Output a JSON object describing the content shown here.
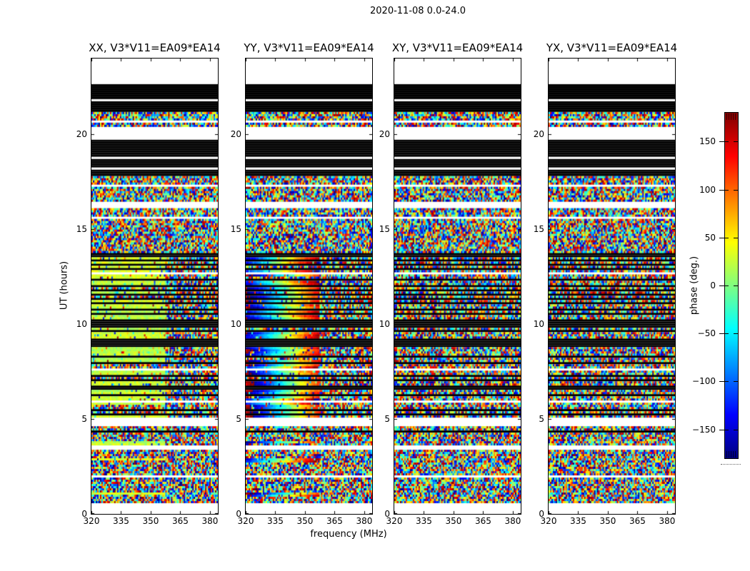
{
  "figure": {
    "suptitle": "2020-11-08 0.0-24.0"
  },
  "chart_data": {
    "type": "heatmap",
    "description": "Dynamic spectra of interferometric visibility phase for baseline V3*V11=EA09*EA14 on 2020-11-08, UT 0-24 h. Four polarization panels (XX, YY, XY, YX) share a frequency axis 320-384 MHz and a UT axis 0-24 h. Color encodes phase in degrees with a jet colormap (-180 to +180). Data are flagged in horizontal bands (white = no data, black = flagged/zero). XX shows coherent phase near +25 deg (light green) below ~357 MHz; YY shows a phase ramp across frequency from about -168 deg (dark blue) to +160 deg (red); XY and YX are incoherent noise; above ~357 MHz all panels are noise-like.",
    "panels": [
      {
        "id": "XX",
        "title": "XX, V3*V11=EA09*EA14",
        "signal_model": "constant"
      },
      {
        "id": "YY",
        "title": "YY, V3*V11=EA09*EA14",
        "signal_model": "gradient"
      },
      {
        "id": "XY",
        "title": "XY, V3*V11=EA09*EA14",
        "signal_model": "noise"
      },
      {
        "id": "YX",
        "title": "YX, V3*V11=EA09*EA14",
        "signal_model": "noise"
      }
    ],
    "x_axis": {
      "label": "frequency (MHz)",
      "range": [
        320,
        384
      ],
      "ticks": [
        320,
        335,
        350,
        365,
        380
      ]
    },
    "y_axis": {
      "label": "UT (hours)",
      "range": [
        0,
        24
      ],
      "ticks": [
        0,
        5,
        10,
        15,
        20
      ]
    },
    "colorbar": {
      "label": "phase (deg.)",
      "colormap": "jet",
      "range": [
        -180,
        180
      ],
      "ticks": [
        150,
        100,
        50,
        0,
        -50,
        -100,
        -150
      ]
    },
    "bands_ut": [
      [
        24.0,
        22.68,
        "white"
      ],
      [
        22.68,
        21.86,
        "black"
      ],
      [
        21.86,
        21.74,
        "white"
      ],
      [
        21.74,
        21.21,
        "black"
      ],
      [
        21.21,
        20.72,
        "noise"
      ],
      [
        20.72,
        20.57,
        "white"
      ],
      [
        20.57,
        20.42,
        "noise"
      ],
      [
        20.42,
        19.67,
        "white"
      ],
      [
        19.67,
        18.81,
        "black"
      ],
      [
        18.81,
        18.73,
        "white"
      ],
      [
        18.73,
        18.28,
        "black"
      ],
      [
        18.28,
        18.17,
        "white"
      ],
      [
        18.17,
        17.83,
        "black"
      ],
      [
        17.83,
        17.76,
        "white"
      ],
      [
        17.76,
        17.37,
        "noise"
      ],
      [
        17.37,
        17.27,
        "white"
      ],
      [
        17.27,
        16.42,
        "noise"
      ],
      [
        16.42,
        16.15,
        "white"
      ],
      [
        16.15,
        15.66,
        "noise"
      ],
      [
        15.66,
        15.56,
        "white"
      ],
      [
        15.56,
        14.25,
        "noise"
      ],
      [
        14.25,
        14.18,
        "white"
      ],
      [
        14.18,
        13.72,
        "noise"
      ],
      [
        13.72,
        13.5,
        "black"
      ],
      [
        13.5,
        12.72,
        "signal"
      ],
      [
        12.72,
        12.65,
        "white"
      ],
      [
        12.65,
        10.38,
        "signal"
      ],
      [
        10.38,
        10.31,
        "white"
      ],
      [
        10.31,
        10.2,
        "signal"
      ],
      [
        10.2,
        9.95,
        "black"
      ],
      [
        9.95,
        9.28,
        "signal"
      ],
      [
        9.28,
        8.95,
        "black"
      ],
      [
        8.95,
        8.6,
        "signal"
      ],
      [
        8.6,
        8.53,
        "white"
      ],
      [
        8.53,
        7.65,
        "signal"
      ],
      [
        7.65,
        7.58,
        "white"
      ],
      [
        7.58,
        5.95,
        "signal"
      ],
      [
        5.95,
        5.88,
        "white"
      ],
      [
        5.88,
        5.08,
        "signal"
      ],
      [
        5.08,
        4.6,
        "white"
      ],
      [
        4.6,
        3.78,
        "noise"
      ],
      [
        3.78,
        3.58,
        "signal"
      ],
      [
        3.58,
        3.4,
        "white"
      ],
      [
        3.4,
        2.95,
        "noise"
      ],
      [
        2.95,
        2.76,
        "signal"
      ],
      [
        2.76,
        2.08,
        "noise"
      ],
      [
        2.08,
        1.9,
        "white"
      ],
      [
        1.9,
        1.14,
        "noise"
      ],
      [
        1.14,
        0.95,
        "signal"
      ],
      [
        0.95,
        0.58,
        "noise"
      ],
      [
        0.58,
        0.0,
        "white"
      ]
    ],
    "thin_black_lines_ut": [
      13.35,
      13.1,
      12.9,
      12.3,
      12.05,
      11.8,
      11.55,
      11.3,
      11.05,
      10.8,
      10.55,
      9.85,
      9.6,
      8.8,
      8.25,
      7.95,
      7.3,
      7.0,
      6.65,
      6.3,
      5.5,
      5.25,
      4.32
    ],
    "signal": {
      "xx_phase_deg": 25,
      "yy_phase_start_deg": -168,
      "yy_phase_span_deg": 330,
      "noise_start_frac": 0.585,
      "outlier_frac": 0.12,
      "pixel_jitter_deg": 15,
      "random_row_noise_frac": 0.1
    }
  }
}
